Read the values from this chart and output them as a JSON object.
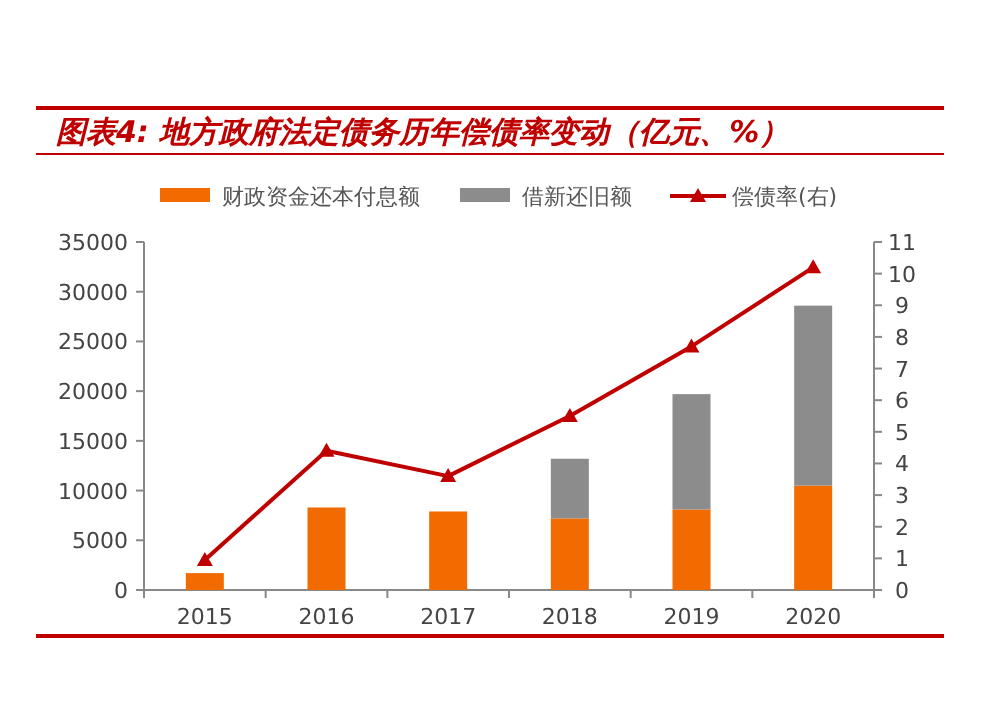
{
  "chart_data": {
    "type": "bar",
    "title": "图表4: 地方政府法定债务历年偿债率变动（亿元、%）",
    "categories": [
      "2015",
      "2016",
      "2017",
      "2018",
      "2019",
      "2020"
    ],
    "stacked": true,
    "series": [
      {
        "name": "财政资金还本付息额",
        "color": "#f26b00",
        "values": [
          1700,
          8300,
          7900,
          7200,
          8100,
          10500
        ]
      },
      {
        "name": "借新还旧额",
        "color": "#8c8c8c",
        "values": [
          null,
          null,
          null,
          6000,
          11600,
          18100
        ]
      },
      {
        "name": "偿债率(右)",
        "type": "line",
        "axis": "y2",
        "color": "#c00000",
        "marker": "triangle",
        "values": [
          0.95,
          4.4,
          3.6,
          5.5,
          7.7,
          10.2
        ]
      }
    ],
    "ylim": [
      0,
      35000
    ],
    "yticks": [
      0,
      5000,
      10000,
      15000,
      20000,
      25000,
      30000,
      35000
    ],
    "y2lim": [
      0,
      11
    ],
    "y2ticks": [
      0,
      1,
      2,
      3,
      4,
      5,
      6,
      7,
      8,
      9,
      10,
      11
    ],
    "legend": "top"
  }
}
